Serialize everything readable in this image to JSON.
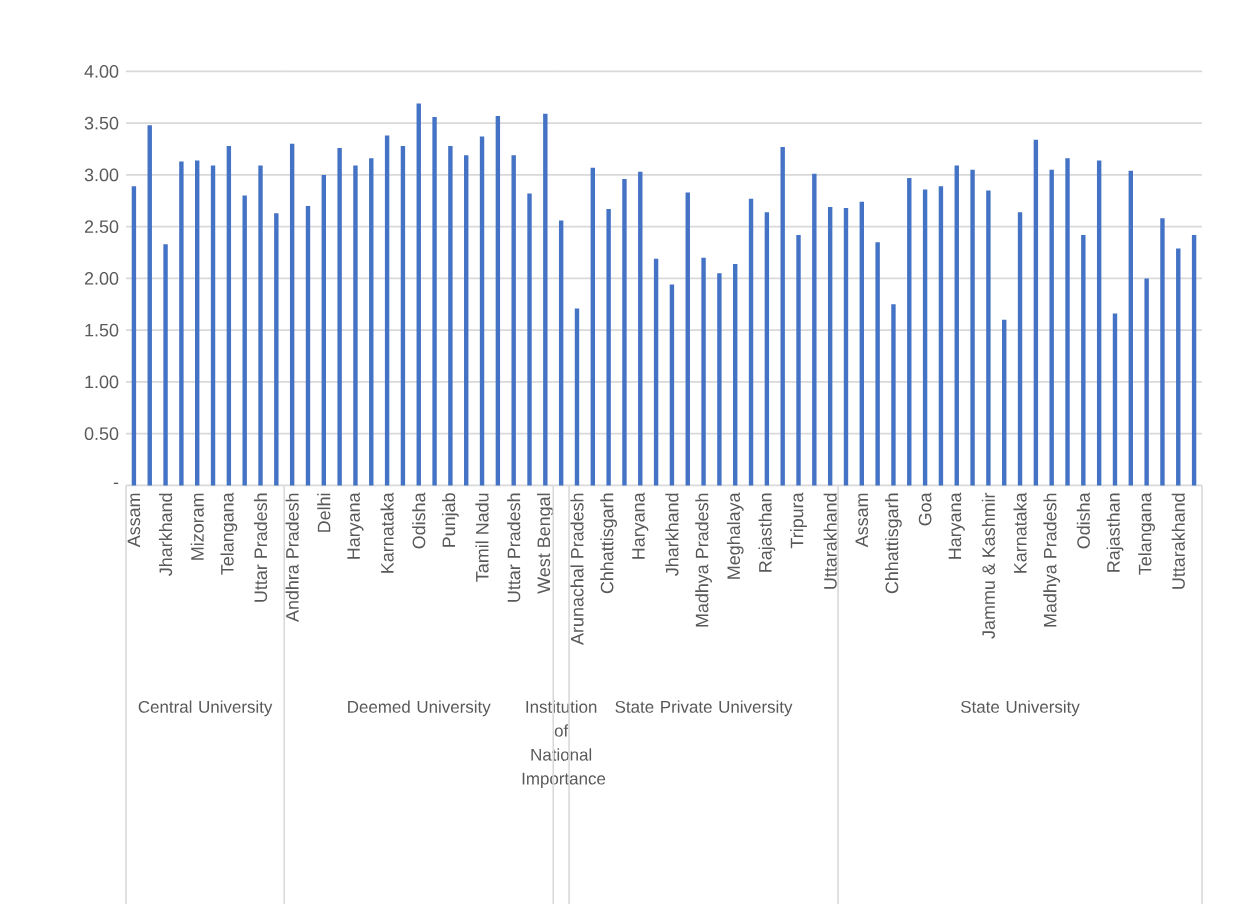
{
  "chart_data": [
    {
      "type": "bar",
      "xlabel": "Central University",
      "categories": [
        "Assam",
        null,
        "Jharkhand",
        null,
        "Mizoram",
        null,
        "Telangana",
        null,
        "Uttar Pradesh",
        null
      ],
      "values": [
        2.89,
        3.48,
        2.33,
        3.13,
        3.14,
        3.09,
        3.28,
        2.8,
        3.09,
        2.63
      ],
      "color": "#4472c4",
      "ylim": [
        0,
        4
      ],
      "yticks": [
        {
          "value": 0,
          "label": "-"
        },
        {
          "value": 0.5,
          "label": "0.50"
        },
        {
          "value": 1,
          "label": "1.00"
        },
        {
          "value": 1.5,
          "label": "1.50"
        },
        {
          "value": 2,
          "label": "2.00"
        },
        {
          "value": 2.5,
          "label": "2.50"
        },
        {
          "value": 3,
          "label": "3.00"
        },
        {
          "value": 3.5,
          "label": "3.50"
        },
        {
          "value": 4,
          "label": "4.00"
        }
      ],
      "grid": "y"
    },
    {
      "type": "bar",
      "xlabel": "Deemed University",
      "categories": [
        "Andhra Pradesh",
        null,
        "Delhi",
        null,
        "Haryana",
        null,
        "Karnataka",
        null,
        "Odisha",
        null,
        "Punjab",
        null,
        "Tamil Nadu",
        null,
        "Uttar Pradesh",
        null,
        "West Bengal"
      ],
      "values": [
        3.3,
        2.7,
        3.0,
        3.26,
        3.09,
        3.16,
        3.38,
        3.28,
        3.69,
        3.56,
        3.28,
        3.19,
        3.37,
        3.57,
        3.19,
        2.82,
        3.59
      ],
      "color": "#4472c4",
      "ylim": [
        0,
        4
      ],
      "yticks": [
        0,
        0.5,
        1,
        1.5,
        2,
        2.5,
        3,
        3.5,
        4
      ],
      "grid": "y",
      "tick_labels": "x"
    },
    {
      "type": "bar",
      "xlabel": "Institution of National Importance",
      "categories": [
        null
      ],
      "values": [
        2.56
      ],
      "color": "#4472c4",
      "ylim": [
        0,
        4
      ],
      "yticks": [
        0,
        0.5,
        1,
        1.5,
        2,
        2.5,
        3,
        3.5,
        4
      ],
      "grid": "y",
      "tick_labels": "x"
    },
    {
      "type": "bar",
      "xlabel": "State Private University",
      "categories": [
        "Arunachal Pradesh",
        null,
        "Chhattisgarh",
        null,
        "Haryana",
        null,
        "Jharkhand",
        null,
        "Madhya Pradesh",
        null,
        "Meghalaya",
        null,
        "Rajasthan",
        null,
        "Tripura",
        null,
        "Uttarakhand"
      ],
      "values": [
        1.71,
        3.07,
        2.67,
        2.96,
        3.03,
        2.19,
        1.94,
        2.83,
        2.2,
        2.05,
        2.14,
        2.77,
        2.64,
        3.27,
        2.42,
        3.01,
        2.69
      ],
      "color": "#4472c4",
      "ylim": [
        0,
        4
      ],
      "yticks": [
        0,
        0.5,
        1,
        1.5,
        2,
        2.5,
        3,
        3.5,
        4
      ],
      "grid": "y",
      "tick_labels": "x"
    },
    {
      "type": "bar",
      "xlabel": "State University",
      "categories": [
        null,
        "Assam",
        null,
        "Chhattisgarh",
        null,
        "Goa",
        null,
        "Haryana",
        null,
        "Jammu & Kashmir",
        null,
        "Karnataka",
        null,
        "Madhya Pradesh",
        null,
        "Odisha",
        null,
        "Rajasthan",
        null,
        "Telangana",
        null,
        "Uttarakhand",
        null
      ],
      "values": [
        2.68,
        2.74,
        2.35,
        1.75,
        2.97,
        2.86,
        2.89,
        3.09,
        3.05,
        2.85,
        1.6,
        2.64,
        3.34,
        3.05,
        3.16,
        2.42,
        3.14,
        1.66,
        3.04,
        2.0,
        2.58,
        2.29,
        2.42
      ],
      "color": "#4472c4",
      "ylim": [
        0,
        4
      ],
      "yticks": [
        0,
        0.5,
        1,
        1.5,
        2,
        2.5,
        3,
        3.5,
        4
      ],
      "grid": "y",
      "tick_labels": "x"
    }
  ]
}
